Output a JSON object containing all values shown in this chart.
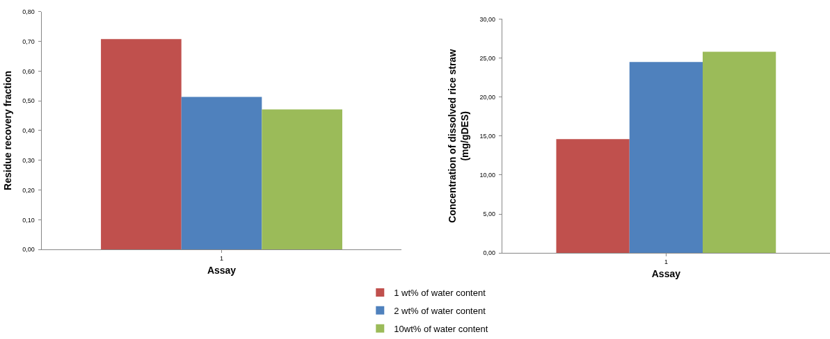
{
  "chart_data": [
    {
      "type": "bar",
      "categories": [
        "1"
      ],
      "xlabel": "Assay",
      "ylabel": "Residue recovery fraction",
      "series": [
        {
          "name": "1 wt% of water content",
          "color": "#c0504d",
          "values": [
            0.708
          ]
        },
        {
          "name": "2 wt% of water content",
          "color": "#4f81bd",
          "values": [
            0.513
          ]
        },
        {
          "name": "10wt% of water content",
          "color": "#9bbb59",
          "values": [
            0.471
          ]
        }
      ],
      "ylim": [
        0,
        0.8
      ],
      "yticks": [
        {
          "value": 0,
          "label": "0,00"
        },
        {
          "value": 0.1,
          "label": "0,10"
        },
        {
          "value": 0.2,
          "label": "0,20"
        },
        {
          "value": 0.3,
          "label": "0,30"
        },
        {
          "value": 0.4,
          "label": "0,40"
        },
        {
          "value": 0.5,
          "label": "0,50"
        },
        {
          "value": 0.6,
          "label": "0,60"
        },
        {
          "value": 0.7,
          "label": "0,70"
        },
        {
          "value": 0.8,
          "label": "0,80"
        }
      ],
      "legend": "bottom"
    },
    {
      "type": "bar",
      "categories": [
        "1"
      ],
      "xlabel": "Assay",
      "ylabel": "Concentration of dissolved rice straw\n(mg/gDES)",
      "series": [
        {
          "color": "#c0504d",
          "values": [
            14.6
          ]
        },
        {
          "color": "#4f81bd",
          "values": [
            24.5
          ]
        },
        {
          "color": "#9bbb59",
          "values": [
            25.8
          ]
        }
      ],
      "ylim": [
        0,
        30
      ],
      "yticks": [
        {
          "value": 0,
          "label": "0,00"
        },
        {
          "value": 5,
          "label": "5,00"
        },
        {
          "value": 10,
          "label": "10,00"
        },
        {
          "value": 15,
          "label": "15,00"
        },
        {
          "value": 20,
          "label": "20,00"
        },
        {
          "value": 25,
          "label": "25,00"
        },
        {
          "value": 30,
          "label": "30,00"
        }
      ]
    }
  ]
}
